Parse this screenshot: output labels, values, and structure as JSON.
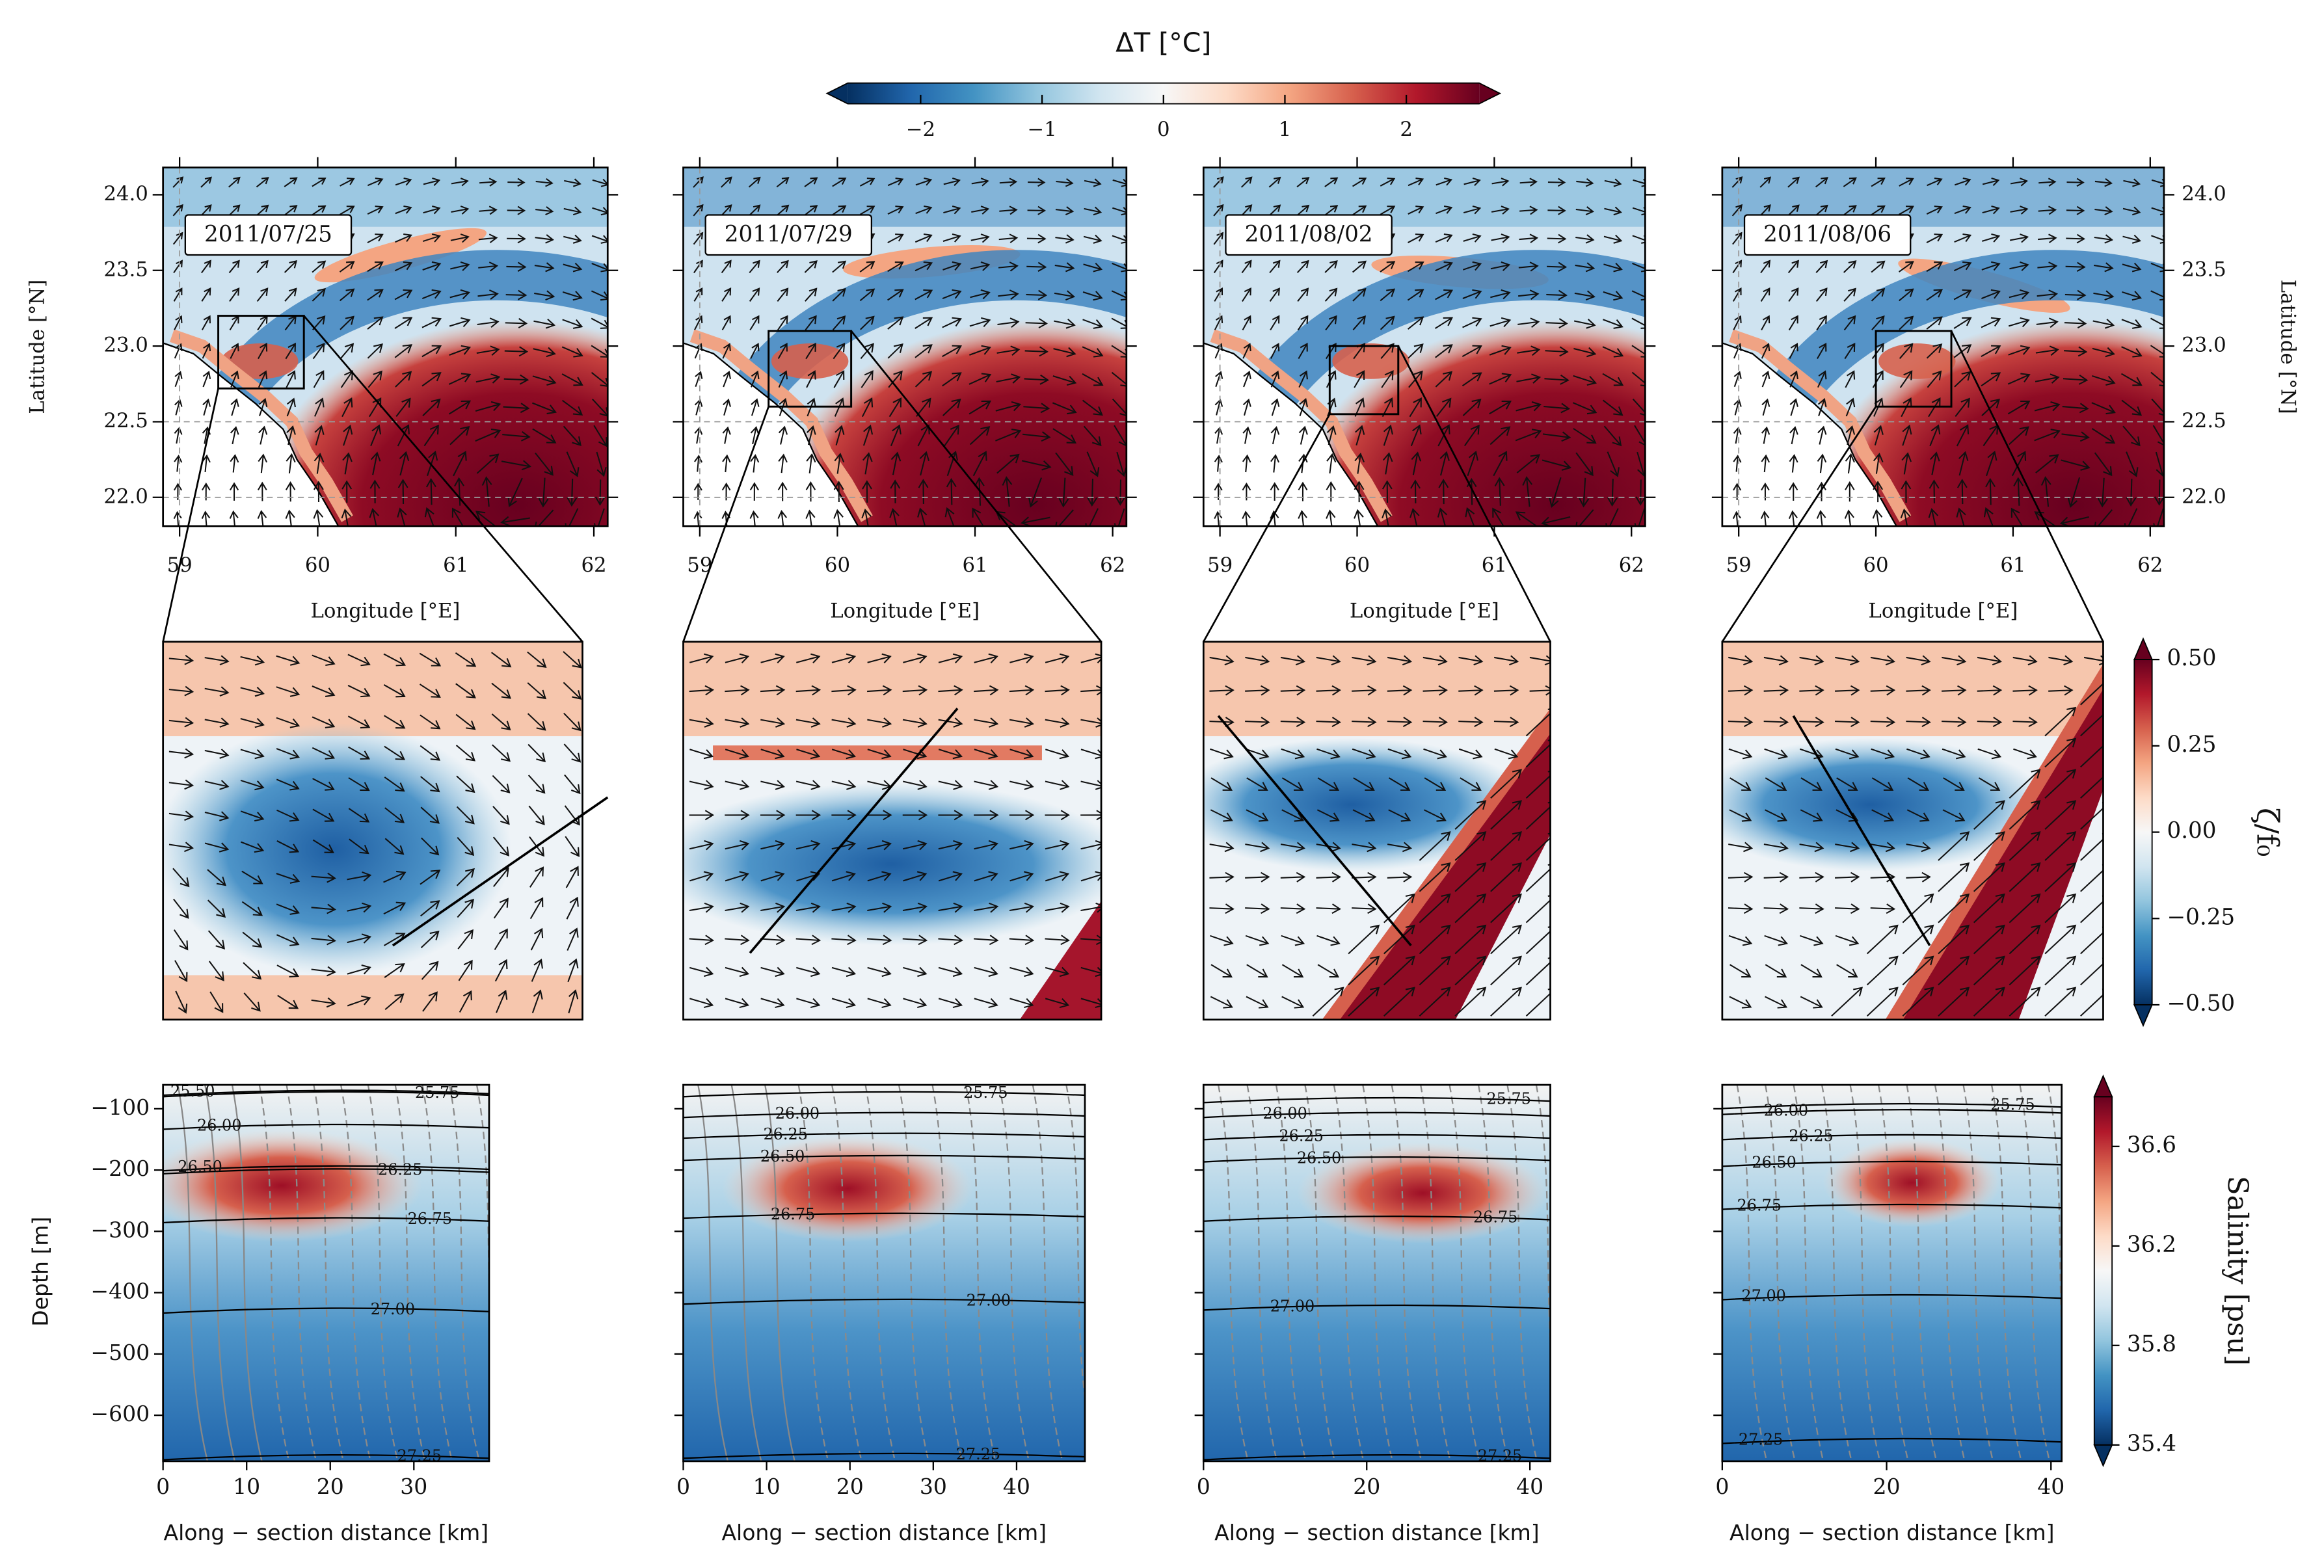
{
  "temp_colorbar": {
    "label": "ΔT [°C]",
    "lim": [
      -2.6,
      2.6
    ],
    "ticks": [
      {
        "value": -2,
        "label": "−2"
      },
      {
        "value": -1,
        "label": "−1"
      },
      0,
      1,
      2
    ]
  },
  "map_panels": {
    "dates": [
      "2011/07/25",
      "2011/07/29",
      "2011/08/02",
      "2011/08/06"
    ],
    "xlabel": "Longitude [°E]",
    "ylabel": "Latitude [°N]",
    "xlim": [
      58.88,
      62.1
    ],
    "xticks": [
      59,
      60,
      61,
      62
    ],
    "ylim": [
      21.81,
      24.18
    ],
    "yticks": [
      {
        "value": 22,
        "label": "22.0"
      },
      22.5,
      {
        "value": 23,
        "label": "23.0"
      },
      23.5,
      {
        "value": 24,
        "label": "24.0"
      }
    ]
  },
  "vorticity_colorbar": {
    "label": "ζ/f₀",
    "lim": [
      -0.5,
      0.5
    ],
    "ticks": [
      {
        "value": 0.5,
        "label": "0.50"
      },
      {
        "value": 0.25,
        "label": "0.25"
      },
      {
        "value": 0,
        "label": "0.00"
      },
      {
        "value": -0.25,
        "label": "−0.25"
      },
      {
        "value": -0.5,
        "label": "−0.50"
      }
    ]
  },
  "section_panels": {
    "ylabel": "Depth [m]",
    "xlabel": "Along − section distance [km]",
    "ylim": [
      -61,
      -675
    ],
    "yticks": [
      {
        "value": -100,
        "label": "−100"
      },
      {
        "value": -200,
        "label": "−200"
      },
      {
        "value": -300,
        "label": "−300"
      },
      {
        "value": -400,
        "label": "−400"
      },
      {
        "value": -500,
        "label": "−500"
      },
      {
        "value": -600,
        "label": "−600"
      }
    ],
    "xlim": [
      [
        0,
        39
      ],
      [
        0,
        48.2
      ],
      [
        0,
        42.5
      ],
      [
        0,
        41.3
      ]
    ],
    "xticks": [
      [
        0,
        10,
        20,
        30
      ],
      [
        0,
        10,
        20,
        30,
        40
      ],
      [
        0,
        20,
        40
      ],
      [
        0,
        20,
        40
      ]
    ],
    "contour_labels": [
      [
        {
          "value": 25.5,
          "label": "25.50"
        },
        {
          "value": 25.75,
          "label": "25.75"
        },
        {
          "value": 26,
          "label": "26.00"
        },
        {
          "value": 26.25,
          "label": "26.25"
        },
        {
          "value": 26.5,
          "label": "26.50"
        },
        {
          "value": 26.75,
          "label": "26.75"
        },
        {
          "value": 27,
          "label": "27.00"
        },
        {
          "value": 27.25,
          "label": "27.25"
        }
      ],
      [
        {
          "value": 25.75,
          "label": "25.75"
        },
        {
          "value": 26,
          "label": "26.00"
        },
        {
          "value": 26.25,
          "label": "26.25"
        },
        {
          "value": 26.5,
          "label": "26.50"
        },
        {
          "value": 26.75,
          "label": "26.75"
        },
        {
          "value": 27,
          "label": "27.00"
        },
        {
          "value": 27.25,
          "label": "27.25"
        }
      ],
      [
        {
          "value": 26,
          "label": "26.00"
        },
        {
          "value": 25.75,
          "label": "25.75"
        },
        {
          "value": 26.25,
          "label": "26.25"
        },
        {
          "value": 26.5,
          "label": "26.50"
        },
        {
          "value": 26.75,
          "label": "26.75"
        },
        {
          "value": 27,
          "label": "27.00"
        },
        {
          "value": 27.25,
          "label": "27.25"
        }
      ],
      [
        {
          "value": 26,
          "label": "26.00"
        },
        {
          "value": 25.75,
          "label": "25.75"
        },
        {
          "value": 26.25,
          "label": "26.25"
        },
        {
          "value": 26.5,
          "label": "26.50"
        },
        {
          "value": 26.75,
          "label": "26.75"
        },
        {
          "value": 27,
          "label": "27.00"
        },
        {
          "value": 27.25,
          "label": "27.25"
        }
      ]
    ]
  },
  "salinity_colorbar": {
    "label": "Salinity [psu]",
    "lim": [
      35.4,
      36.8
    ],
    "ticks": [
      35.4,
      35.8,
      36.2,
      36.6
    ]
  }
}
